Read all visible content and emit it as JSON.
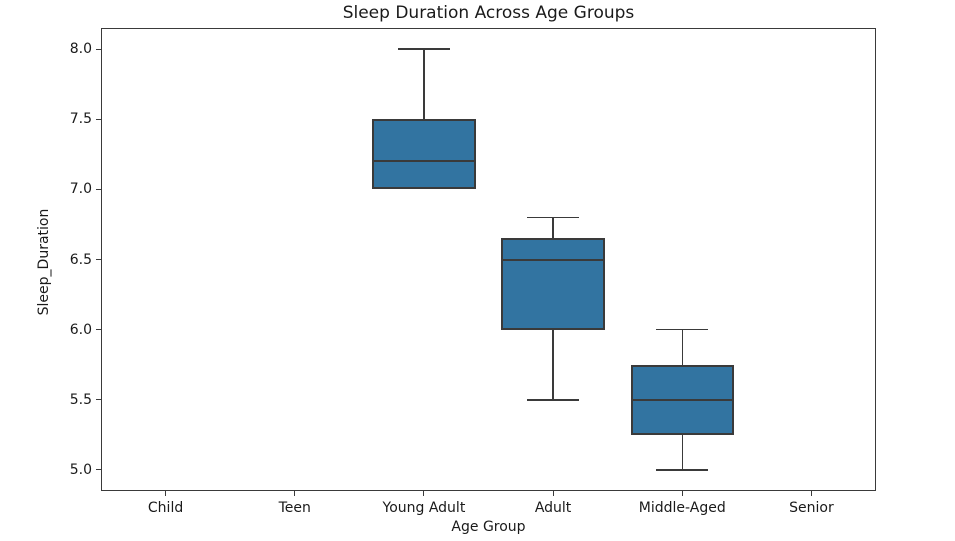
{
  "chart_data": {
    "type": "box",
    "title": "Sleep Duration Across Age Groups",
    "xlabel": "Age Group",
    "ylabel": "Sleep_Duration",
    "categories": [
      "Child",
      "Teen",
      "Young Adult",
      "Adult",
      "Middle-Aged",
      "Senior"
    ],
    "ytick_labels": [
      "5.0",
      "5.5",
      "6.0",
      "6.5",
      "7.0",
      "7.5",
      "8.0"
    ],
    "ylim": [
      4.85,
      8.15
    ],
    "grid": false,
    "legend": "none",
    "boxes": [
      {
        "category": "Child",
        "has_data": false,
        "whisker_low": null,
        "q1": null,
        "median": null,
        "q3": null,
        "whisker_high": null
      },
      {
        "category": "Teen",
        "has_data": false,
        "whisker_low": null,
        "q1": null,
        "median": null,
        "q3": null,
        "whisker_high": null
      },
      {
        "category": "Young Adult",
        "has_data": true,
        "whisker_low": 7.0,
        "q1": 7.0,
        "median": 7.2,
        "q3": 7.5,
        "whisker_high": 8.0
      },
      {
        "category": "Adult",
        "has_data": true,
        "whisker_low": 5.5,
        "q1": 6.0,
        "median": 6.5,
        "q3": 6.65,
        "whisker_high": 6.8
      },
      {
        "category": "Middle-Aged",
        "has_data": true,
        "whisker_low": 5.0,
        "q1": 5.25,
        "median": 5.5,
        "q3": 5.75,
        "whisker_high": 6.0
      },
      {
        "category": "Senior",
        "has_data": false,
        "whisker_low": null,
        "q1": null,
        "median": null,
        "q3": null,
        "whisker_high": null
      }
    ],
    "colors": {
      "box_fill": "#3274A1",
      "box_edge": "#3A3A3A",
      "median": "#3A3A3A",
      "whisker": "#3A3A3A",
      "spine": "#3A3A3A",
      "text": "#1A1A1A",
      "background": "#FFFFFF"
    }
  }
}
